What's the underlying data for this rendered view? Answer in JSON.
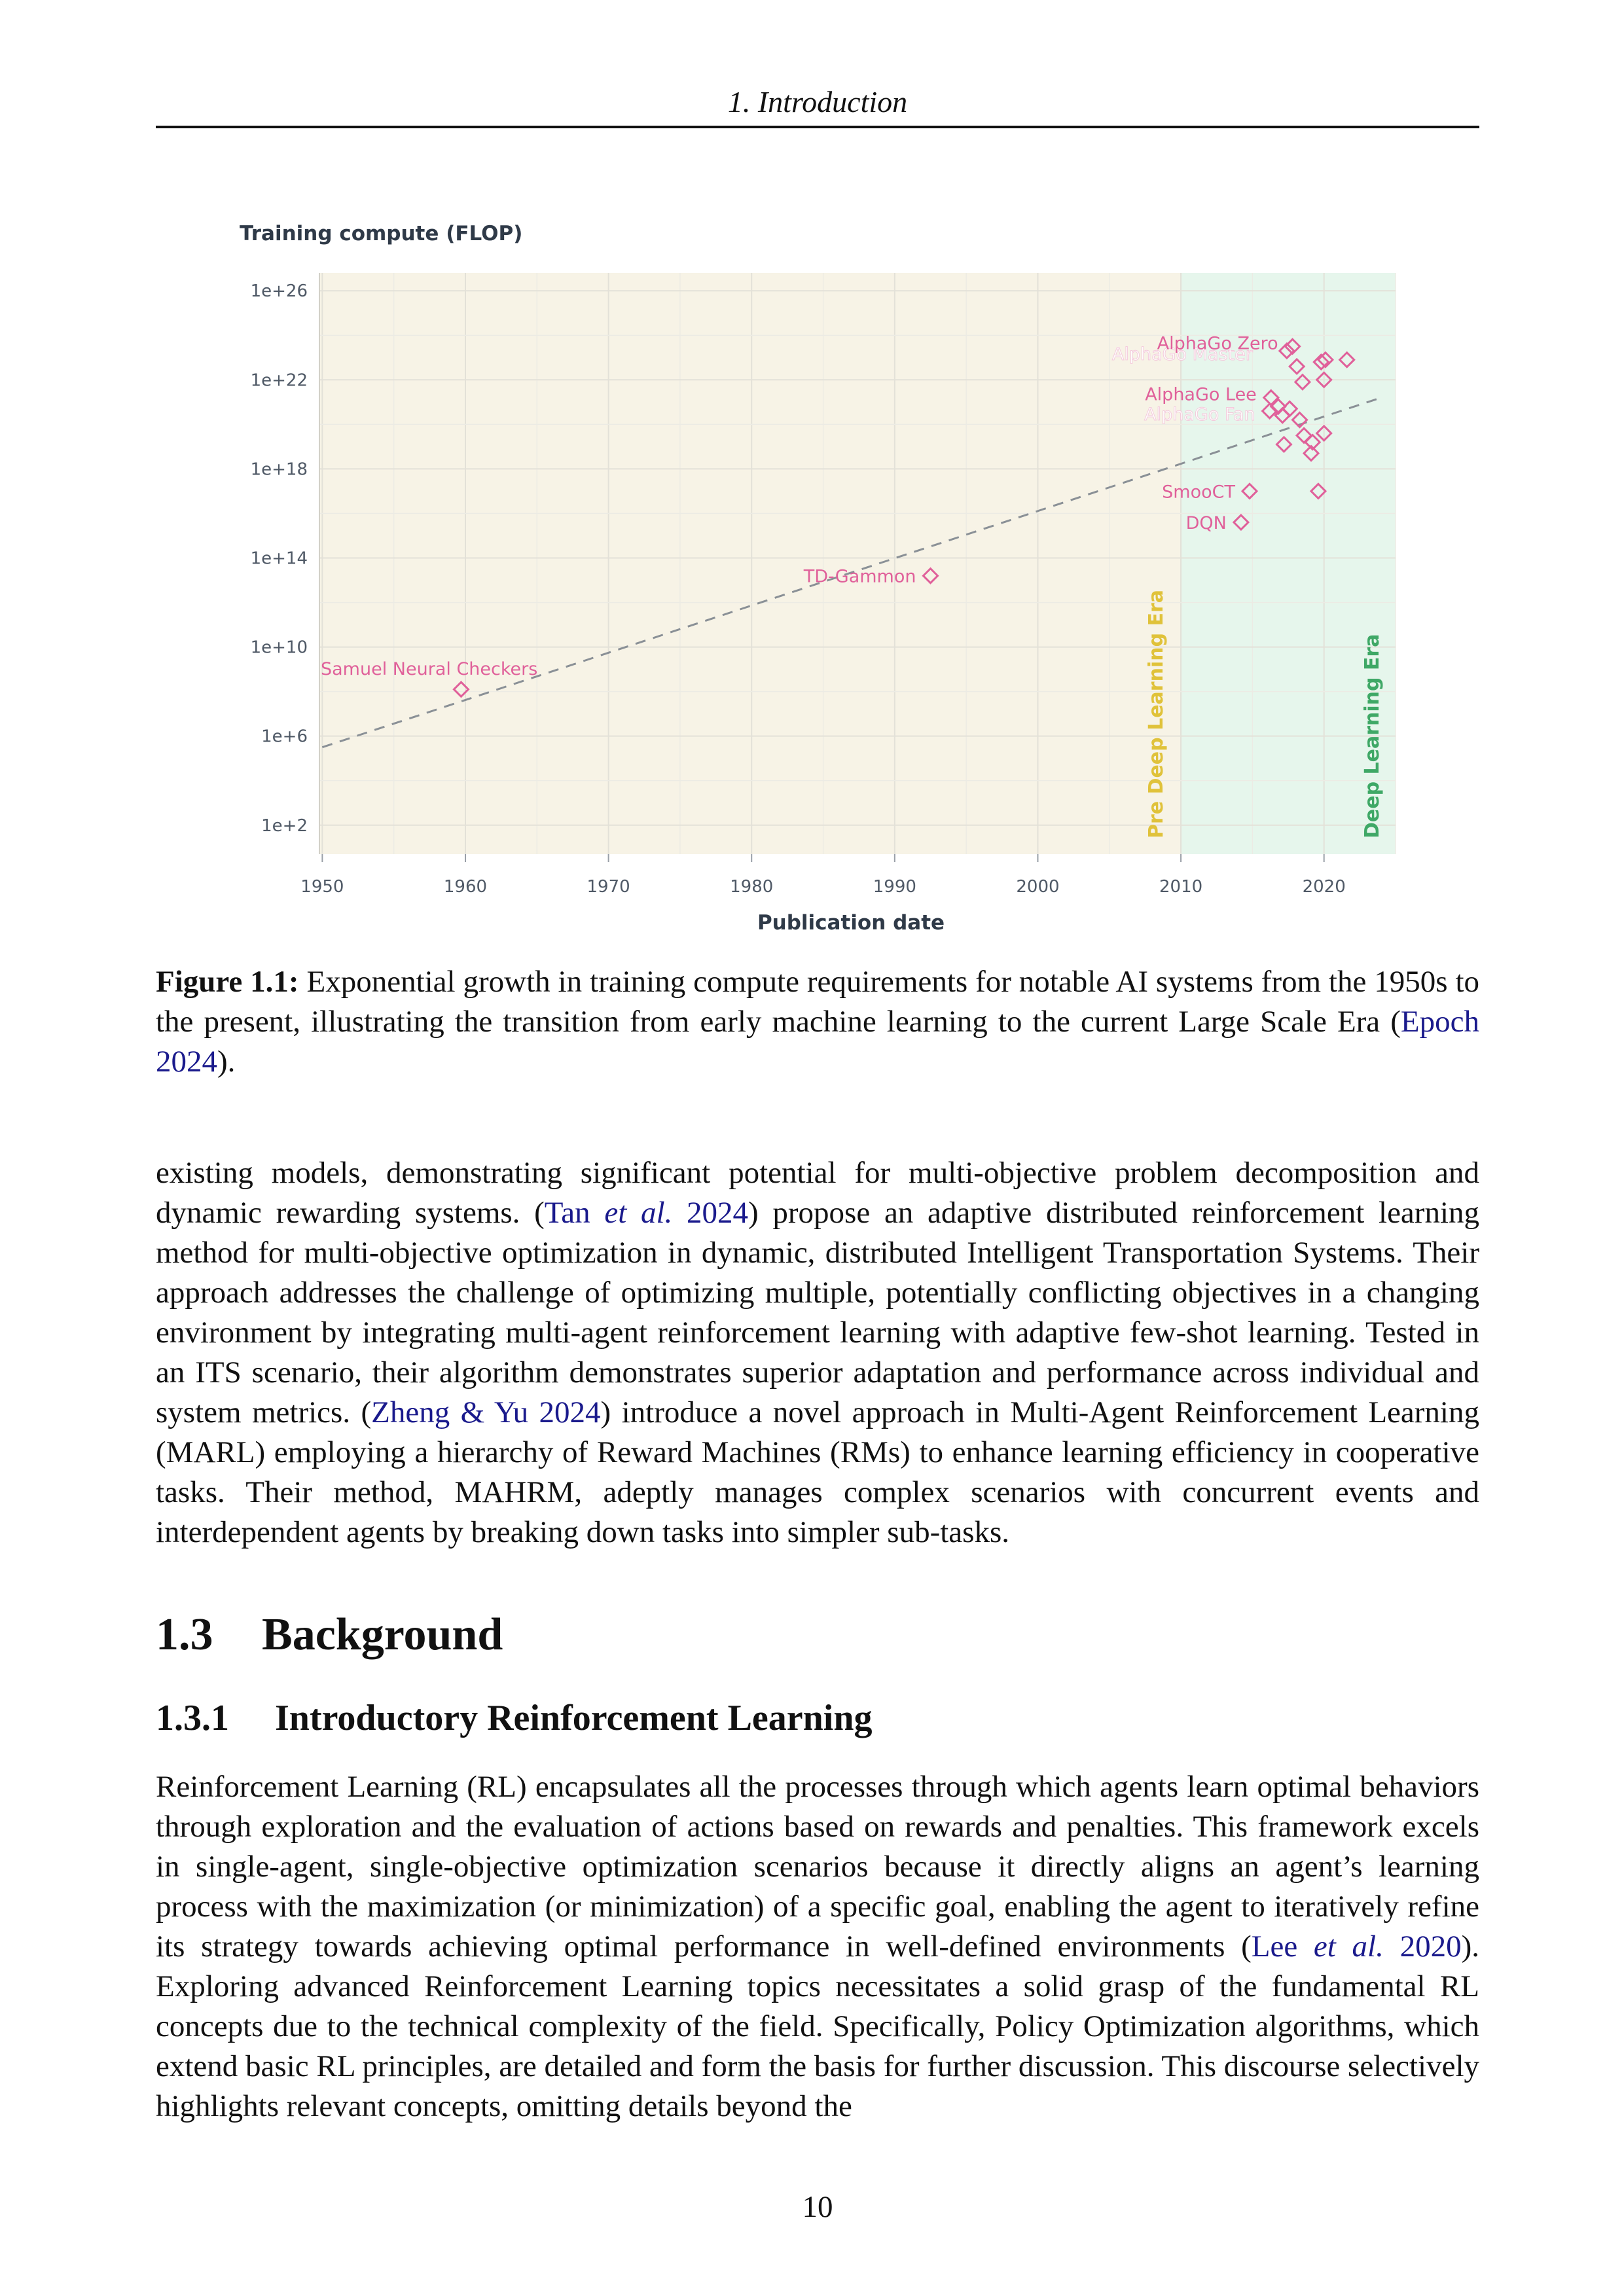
{
  "running_head": "1. Introduction",
  "page_number": "10",
  "figure": {
    "caption_label": "Figure 1.1:",
    "caption_text_1": " Exponential growth in training compute requirements for notable AI systems from the 1950s to the present, illustrating the transition from early machine learning to the current Large Scale Era (",
    "caption_cite": "Epoch 2024",
    "caption_text_2": ")."
  },
  "chart_data": {
    "type": "scatter",
    "ylabel": "Training compute (FLOP)",
    "xlabel": "Publication date",
    "x_ticks": [
      1950,
      1960,
      1970,
      1980,
      1990,
      2000,
      2010,
      2020
    ],
    "y_ticks": [
      {
        "exp": 2,
        "label": "1e+2"
      },
      {
        "exp": 6,
        "label": "1e+6"
      },
      {
        "exp": 10,
        "label": "1e+10"
      },
      {
        "exp": 14,
        "label": "1e+14"
      },
      {
        "exp": 18,
        "label": "1e+18"
      },
      {
        "exp": 22,
        "label": "1e+22"
      },
      {
        "exp": 26,
        "label": "1e+26"
      }
    ],
    "y_scale": "log",
    "xlim": [
      1949.8,
      2025
    ],
    "ylim_exp": [
      0.7,
      26.8
    ],
    "grid": true,
    "eras": [
      {
        "name": "Pre Deep Learning Era",
        "from": 1949.8,
        "to": 2010,
        "color": "#f7f3e6",
        "label_color": "#e0c23a"
      },
      {
        "name": "Deep Learning Era",
        "from": 2010,
        "to": 2025,
        "color": "#e6f6ec",
        "label_color": "#3fa866"
      }
    ],
    "marker_color": "#e0609a",
    "trend_color": "#8a9096",
    "trend": {
      "x": [
        1950,
        2024
      ],
      "y_exp": [
        5.5,
        21.2
      ]
    },
    "points": [
      {
        "x": 1959.7,
        "y_exp": 8.1,
        "label": "Samuel Neural Checkers"
      },
      {
        "x": 1992.5,
        "y_exp": 13.2,
        "label": "TD-Gammon"
      },
      {
        "x": 2014.2,
        "y_exp": 15.6,
        "label": "DQN"
      },
      {
        "x": 2014.8,
        "y_exp": 17.0,
        "label": "SmooCT"
      },
      {
        "x": 2016.2,
        "y_exp": 20.6,
        "label": "AlphaGo Fan"
      },
      {
        "x": 2016.3,
        "y_exp": 21.2,
        "label": "AlphaGo Lee"
      },
      {
        "x": 2017.4,
        "y_exp": 23.3,
        "label": "AlphaGo Master"
      },
      {
        "x": 2017.8,
        "y_exp": 23.5,
        "label": "AlphaGo Zero"
      },
      {
        "x": 2016.8,
        "y_exp": 20.8,
        "label": ""
      },
      {
        "x": 2017.1,
        "y_exp": 20.4,
        "label": ""
      },
      {
        "x": 2017.6,
        "y_exp": 20.7,
        "label": ""
      },
      {
        "x": 2018.1,
        "y_exp": 22.6,
        "label": ""
      },
      {
        "x": 2018.5,
        "y_exp": 21.9,
        "label": ""
      },
      {
        "x": 2018.3,
        "y_exp": 20.2,
        "label": ""
      },
      {
        "x": 2018.6,
        "y_exp": 19.5,
        "label": ""
      },
      {
        "x": 2019.2,
        "y_exp": 19.2,
        "label": ""
      },
      {
        "x": 2019.1,
        "y_exp": 18.7,
        "label": ""
      },
      {
        "x": 2017.2,
        "y_exp": 19.1,
        "label": ""
      },
      {
        "x": 2019.8,
        "y_exp": 22.8,
        "label": ""
      },
      {
        "x": 2020.1,
        "y_exp": 22.9,
        "label": ""
      },
      {
        "x": 2020.0,
        "y_exp": 22.0,
        "label": ""
      },
      {
        "x": 2020.0,
        "y_exp": 19.6,
        "label": ""
      },
      {
        "x": 2019.6,
        "y_exp": 17.0,
        "label": ""
      },
      {
        "x": 2021.6,
        "y_exp": 22.9,
        "label": ""
      }
    ]
  },
  "para1": {
    "t1": "existing models, demonstrating significant potential for multi-objective problem decomposition and dynamic rewarding systems. (",
    "cite1": "Tan",
    "cite1_etal": "et al.",
    "cite1_year": "2024",
    "t2": ") propose an adaptive distributed reinforcement learning method for multi-objective optimization in dynamic, distributed Intelligent Transportation Systems. Their approach addresses the challenge of optimizing multiple, potentially conflicting objectives in a changing environment by integrating multi-agent reinforcement learning with adaptive few-shot learning. Tested in an ITS scenario, their algorithm demonstrates superior adaptation and performance across individual and system metrics. (",
    "cite2": "Zheng & Yu 2024",
    "t3": ") introduce a novel approach in Multi-Agent Reinforcement Learning (MARL) employing a hierarchy of Reward Machines (RMs) to enhance learning efficiency in cooperative tasks. Their method, MAHRM, adeptly manages complex scenarios with concurrent events and interdependent agents by breaking down tasks into simpler sub-tasks."
  },
  "section": {
    "number": "1.3",
    "title": "Background"
  },
  "subsection": {
    "number": "1.3.1",
    "title": "Introductory Reinforcement Learning"
  },
  "para2": {
    "t1": "Reinforcement Learning (RL) encapsulates all the processes through which agents learn optimal behaviors through exploration and the evaluation of actions based on rewards and penalties. This framework excels in single-agent, single-objective optimization scenarios because it directly aligns an agent’s learning process with the maximization (or minimization) of a specific goal, enabling the agent to iteratively refine its strategy towards achieving optimal performance in well-defined environments (",
    "cite1": "Lee",
    "cite1_etal": "et al.",
    "cite1_year": "2020",
    "t2": "). Exploring advanced Reinforcement Learning topics necessitates a solid grasp of the fundamental RL concepts due to the technical complexity of the field. Specifically, Policy Optimization algorithms, which extend basic RL principles, are detailed and form the basis for further discussion. This discourse selectively highlights relevant concepts, omitting details beyond the"
  }
}
